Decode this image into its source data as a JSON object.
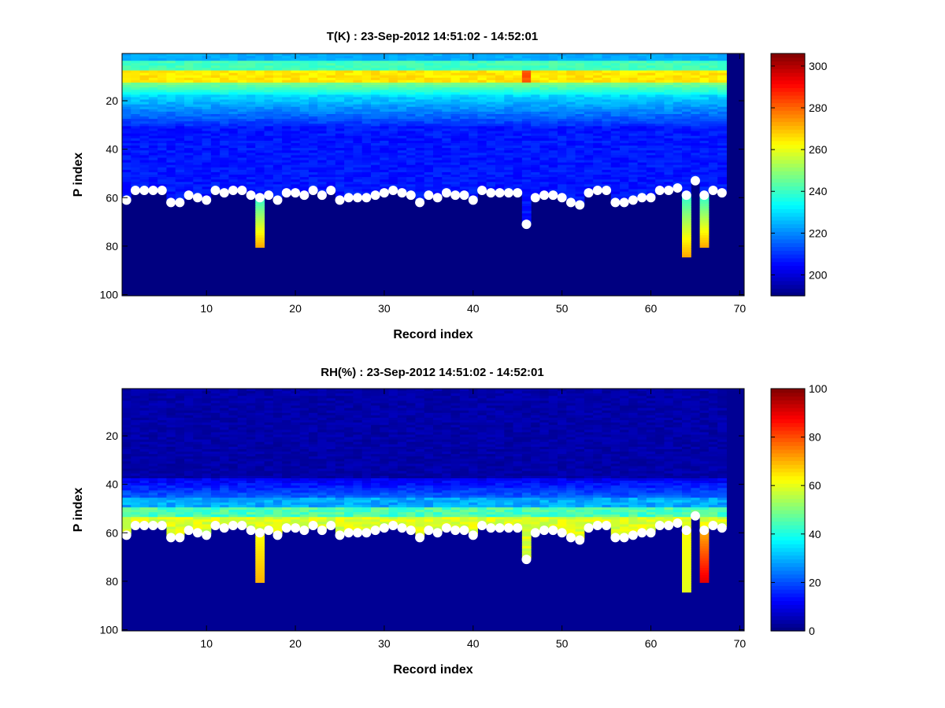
{
  "colors": {
    "background": "#ffffff",
    "colormap": "jet",
    "marker": "#ffffff"
  },
  "chart_data": [
    {
      "type": "heatmap",
      "title": "T(K) : 23-Sep-2012 14:51:02 - 14:52:01",
      "xlabel": "Record index",
      "ylabel": "P index",
      "xlim": [
        0.5,
        70.5
      ],
      "ylim": [
        0.5,
        100.5
      ],
      "y_reversed": true,
      "x_ticks": [
        10,
        20,
        30,
        40,
        50,
        60,
        70
      ],
      "y_ticks": [
        20,
        40,
        60,
        80,
        100
      ],
      "colorbar": {
        "min": 190,
        "max": 306,
        "ticks": [
          200,
          220,
          240,
          260,
          280,
          300
        ]
      },
      "records": 68,
      "background_value": 190,
      "markers": {
        "color": "white",
        "x": [
          1,
          2,
          3,
          4,
          5,
          6,
          7,
          8,
          9,
          10,
          11,
          12,
          13,
          14,
          15,
          16,
          17,
          18,
          19,
          20,
          21,
          22,
          23,
          24,
          25,
          26,
          27,
          28,
          29,
          30,
          31,
          32,
          33,
          34,
          35,
          36,
          37,
          38,
          39,
          40,
          41,
          42,
          43,
          44,
          45,
          46,
          47,
          48,
          49,
          50,
          51,
          52,
          53,
          54,
          55,
          56,
          57,
          58,
          59,
          60,
          61,
          62,
          63,
          64,
          65,
          66,
          67,
          68
        ],
        "y": [
          61,
          57,
          57,
          57,
          57,
          62,
          62,
          59,
          60,
          61,
          57,
          58,
          57,
          57,
          59,
          60,
          59,
          61,
          58,
          58,
          59,
          57,
          59,
          57,
          61,
          60,
          60,
          60,
          59,
          58,
          57,
          58,
          59,
          62,
          59,
          60,
          58,
          59,
          59,
          61,
          57,
          58,
          58,
          58,
          58,
          71,
          60,
          59,
          59,
          60,
          62,
          63,
          58,
          57,
          57,
          62,
          62,
          61,
          60,
          60,
          57,
          57,
          56,
          59,
          53,
          59,
          57,
          58
        ]
      }
    },
    {
      "type": "heatmap",
      "title": "RH(%) : 23-Sep-2012 14:51:02 - 14:52:01",
      "xlabel": "Record index",
      "ylabel": "P index",
      "xlim": [
        0.5,
        70.5
      ],
      "ylim": [
        0.5,
        100.5
      ],
      "y_reversed": true,
      "x_ticks": [
        10,
        20,
        30,
        40,
        50,
        60,
        70
      ],
      "y_ticks": [
        20,
        40,
        60,
        80,
        100
      ],
      "colorbar": {
        "min": 0,
        "max": 100,
        "ticks": [
          0,
          20,
          40,
          60,
          80,
          100
        ]
      },
      "records": 68,
      "background_value": 2,
      "markers": {
        "color": "white",
        "x": [
          1,
          2,
          3,
          4,
          5,
          6,
          7,
          8,
          9,
          10,
          11,
          12,
          13,
          14,
          15,
          16,
          17,
          18,
          19,
          20,
          21,
          22,
          23,
          24,
          25,
          26,
          27,
          28,
          29,
          30,
          31,
          32,
          33,
          34,
          35,
          36,
          37,
          38,
          39,
          40,
          41,
          42,
          43,
          44,
          45,
          46,
          47,
          48,
          49,
          50,
          51,
          52,
          53,
          54,
          55,
          56,
          57,
          58,
          59,
          60,
          61,
          62,
          63,
          64,
          65,
          66,
          67,
          68
        ],
        "y": [
          61,
          57,
          57,
          57,
          57,
          62,
          62,
          59,
          60,
          61,
          57,
          58,
          57,
          57,
          59,
          60,
          59,
          61,
          58,
          58,
          59,
          57,
          59,
          57,
          61,
          60,
          60,
          60,
          59,
          58,
          57,
          58,
          59,
          62,
          59,
          60,
          58,
          59,
          59,
          61,
          57,
          58,
          58,
          58,
          58,
          71,
          60,
          59,
          59,
          60,
          62,
          63,
          58,
          57,
          57,
          62,
          62,
          61,
          60,
          60,
          57,
          57,
          56,
          59,
          53,
          59,
          57,
          58
        ]
      }
    }
  ]
}
